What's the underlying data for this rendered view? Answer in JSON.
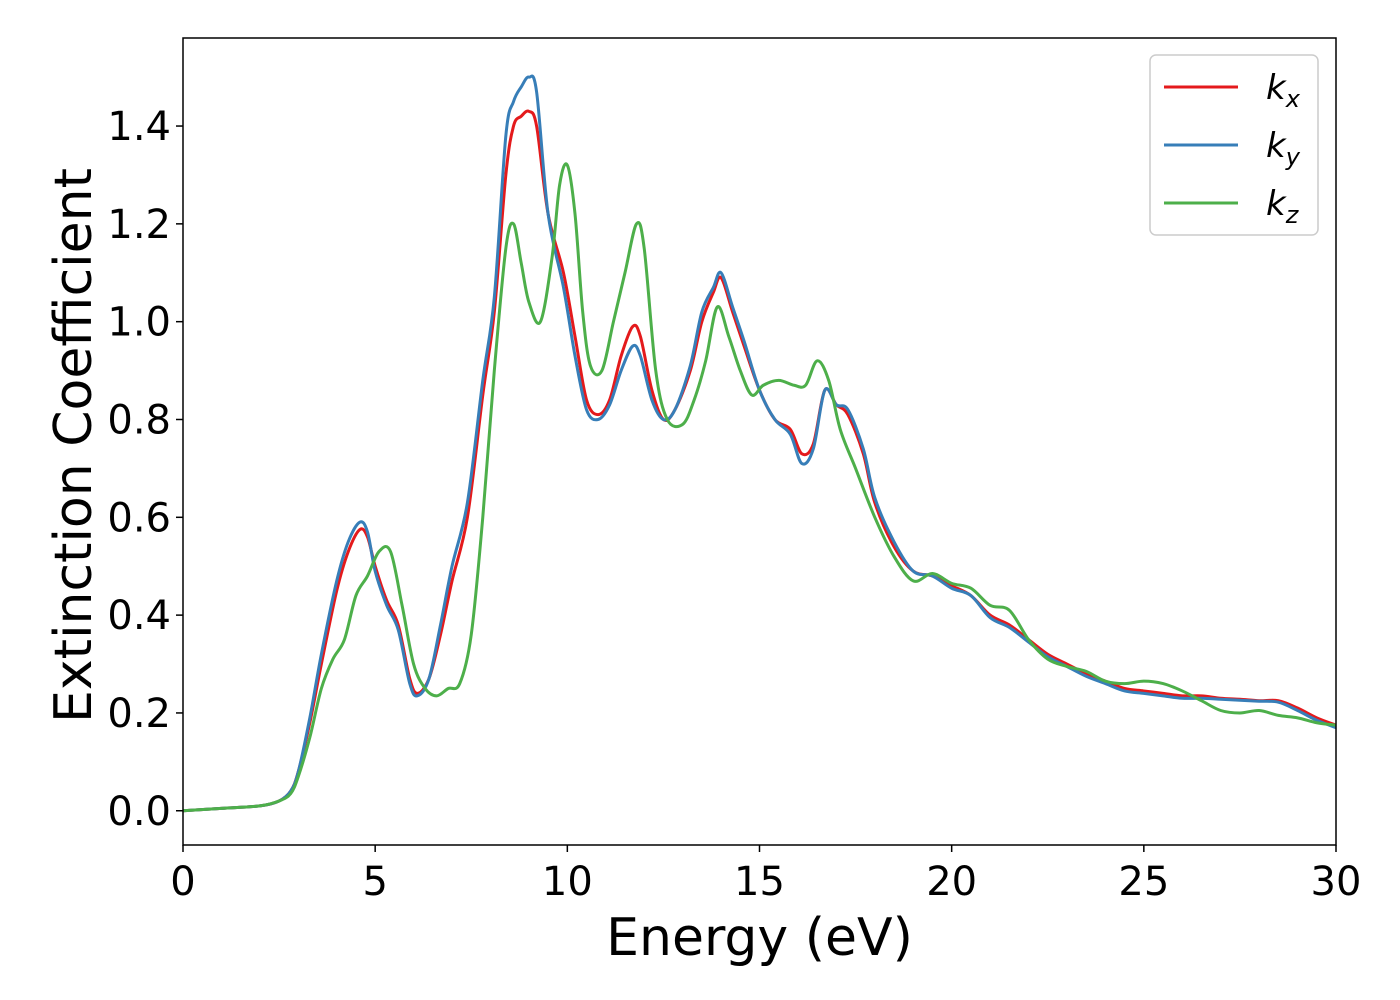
{
  "chart_data": {
    "type": "line",
    "title": "",
    "xlabel": "Energy (eV)",
    "ylabel": "Extinction Coefficient",
    "xlim": [
      0,
      30
    ],
    "ylim": [
      -0.07,
      1.58
    ],
    "xticks": [
      0,
      5,
      10,
      15,
      20,
      25,
      30
    ],
    "xtick_labels": [
      "0",
      "5",
      "10",
      "15",
      "20",
      "25",
      "30"
    ],
    "yticks": [
      0.0,
      0.2,
      0.4,
      0.6,
      0.8,
      1.0,
      1.2,
      1.4
    ],
    "ytick_labels": [
      "0.0",
      "0.2",
      "0.4",
      "0.6",
      "0.8",
      "1.0",
      "1.2",
      "1.4"
    ],
    "grid": false,
    "legend_position": "top-right",
    "series": [
      {
        "name": "k",
        "subscript": "x",
        "color": "#e41a1c",
        "x": [
          0,
          1,
          2,
          2.5,
          2.8,
          3.0,
          3.3,
          3.6,
          4.0,
          4.3,
          4.6,
          4.8,
          5.0,
          5.3,
          5.6,
          5.9,
          6.1,
          6.4,
          6.7,
          7.0,
          7.4,
          7.8,
          8.1,
          8.4,
          8.6,
          8.8,
          9.0,
          9.2,
          9.5,
          9.9,
          10.2,
          10.5,
          10.8,
          11.1,
          11.4,
          11.7,
          11.9,
          12.2,
          12.5,
          12.8,
          13.2,
          13.5,
          13.8,
          14.0,
          14.3,
          14.6,
          15.0,
          15.4,
          15.8,
          16.1,
          16.4,
          16.7,
          17.0,
          17.3,
          17.7,
          18.0,
          18.5,
          19.0,
          19.5,
          20.0,
          20.5,
          21.0,
          21.5,
          22.0,
          22.5,
          23.0,
          23.5,
          24.0,
          24.5,
          25.0,
          25.5,
          26.0,
          26.5,
          27.0,
          27.5,
          28.0,
          28.5,
          29.0,
          29.5,
          30.0
        ],
        "y": [
          0.0,
          0.005,
          0.01,
          0.02,
          0.04,
          0.08,
          0.18,
          0.3,
          0.45,
          0.53,
          0.575,
          0.56,
          0.5,
          0.43,
          0.38,
          0.27,
          0.24,
          0.27,
          0.36,
          0.47,
          0.6,
          0.85,
          1.02,
          1.3,
          1.4,
          1.42,
          1.43,
          1.4,
          1.22,
          1.1,
          0.97,
          0.84,
          0.81,
          0.84,
          0.93,
          0.99,
          0.97,
          0.86,
          0.8,
          0.82,
          0.9,
          1.0,
          1.06,
          1.09,
          1.02,
          0.95,
          0.86,
          0.8,
          0.78,
          0.73,
          0.75,
          0.86,
          0.83,
          0.81,
          0.73,
          0.63,
          0.54,
          0.49,
          0.48,
          0.46,
          0.44,
          0.4,
          0.38,
          0.35,
          0.32,
          0.3,
          0.28,
          0.265,
          0.25,
          0.245,
          0.24,
          0.235,
          0.235,
          0.23,
          0.228,
          0.225,
          0.225,
          0.21,
          0.19,
          0.175
        ]
      },
      {
        "name": "k",
        "subscript": "y",
        "color": "#377eb8",
        "x": [
          0,
          1,
          2,
          2.5,
          2.8,
          3.0,
          3.3,
          3.6,
          4.0,
          4.3,
          4.6,
          4.8,
          5.0,
          5.3,
          5.6,
          5.9,
          6.1,
          6.4,
          6.7,
          7.0,
          7.4,
          7.8,
          8.1,
          8.4,
          8.6,
          8.8,
          9.0,
          9.2,
          9.5,
          9.9,
          10.2,
          10.5,
          10.8,
          11.1,
          11.4,
          11.7,
          11.9,
          12.2,
          12.5,
          12.8,
          13.2,
          13.5,
          13.8,
          14.0,
          14.3,
          14.6,
          15.0,
          15.4,
          15.8,
          16.1,
          16.4,
          16.7,
          17.0,
          17.3,
          17.7,
          18.0,
          18.5,
          19.0,
          19.5,
          20.0,
          20.5,
          21.0,
          21.5,
          22.0,
          22.5,
          23.0,
          23.5,
          24.0,
          24.5,
          25.0,
          25.5,
          26.0,
          26.5,
          27.0,
          27.5,
          28.0,
          28.5,
          29.0,
          29.5,
          30.0
        ],
        "y": [
          0.0,
          0.005,
          0.01,
          0.02,
          0.04,
          0.08,
          0.19,
          0.32,
          0.47,
          0.55,
          0.59,
          0.57,
          0.49,
          0.42,
          0.37,
          0.26,
          0.235,
          0.27,
          0.38,
          0.5,
          0.63,
          0.88,
          1.05,
          1.38,
          1.45,
          1.48,
          1.5,
          1.47,
          1.22,
          1.07,
          0.93,
          0.82,
          0.8,
          0.83,
          0.9,
          0.95,
          0.93,
          0.84,
          0.8,
          0.82,
          0.91,
          1.02,
          1.07,
          1.1,
          1.03,
          0.96,
          0.86,
          0.8,
          0.77,
          0.71,
          0.74,
          0.86,
          0.83,
          0.82,
          0.74,
          0.64,
          0.55,
          0.49,
          0.48,
          0.455,
          0.44,
          0.395,
          0.375,
          0.345,
          0.315,
          0.295,
          0.275,
          0.26,
          0.245,
          0.24,
          0.235,
          0.23,
          0.23,
          0.228,
          0.226,
          0.224,
          0.222,
          0.205,
          0.185,
          0.17
        ]
      },
      {
        "name": "k",
        "subscript": "z",
        "color": "#4daf4a",
        "x": [
          0,
          1,
          2,
          2.5,
          2.8,
          3.0,
          3.3,
          3.6,
          3.9,
          4.2,
          4.5,
          4.8,
          5.1,
          5.4,
          5.7,
          6.0,
          6.3,
          6.6,
          6.9,
          7.2,
          7.5,
          7.8,
          8.1,
          8.4,
          8.6,
          8.8,
          9.0,
          9.3,
          9.6,
          9.8,
          10.0,
          10.2,
          10.4,
          10.6,
          10.9,
          11.2,
          11.5,
          11.8,
          12.0,
          12.3,
          12.6,
          13.0,
          13.3,
          13.6,
          13.9,
          14.2,
          14.5,
          14.8,
          15.1,
          15.5,
          15.9,
          16.2,
          16.5,
          16.8,
          17.1,
          17.5,
          18.0,
          18.5,
          19.0,
          19.5,
          20.0,
          20.5,
          21.0,
          21.5,
          22.0,
          22.5,
          23.0,
          23.5,
          24.0,
          24.5,
          25.0,
          25.5,
          26.0,
          26.5,
          27.0,
          27.5,
          28.0,
          28.5,
          29.0,
          29.5,
          30.0
        ],
        "y": [
          0.0,
          0.005,
          0.01,
          0.02,
          0.035,
          0.07,
          0.15,
          0.25,
          0.31,
          0.35,
          0.44,
          0.48,
          0.53,
          0.53,
          0.42,
          0.3,
          0.25,
          0.235,
          0.25,
          0.26,
          0.36,
          0.6,
          0.9,
          1.15,
          1.2,
          1.12,
          1.04,
          1.0,
          1.13,
          1.28,
          1.32,
          1.22,
          1.02,
          0.91,
          0.9,
          1.0,
          1.1,
          1.2,
          1.15,
          0.9,
          0.8,
          0.79,
          0.84,
          0.92,
          1.03,
          0.97,
          0.9,
          0.85,
          0.87,
          0.88,
          0.87,
          0.87,
          0.92,
          0.88,
          0.78,
          0.7,
          0.6,
          0.52,
          0.47,
          0.485,
          0.465,
          0.455,
          0.42,
          0.41,
          0.35,
          0.31,
          0.295,
          0.285,
          0.265,
          0.26,
          0.265,
          0.26,
          0.245,
          0.225,
          0.205,
          0.2,
          0.205,
          0.195,
          0.19,
          0.18,
          0.175
        ]
      }
    ]
  }
}
